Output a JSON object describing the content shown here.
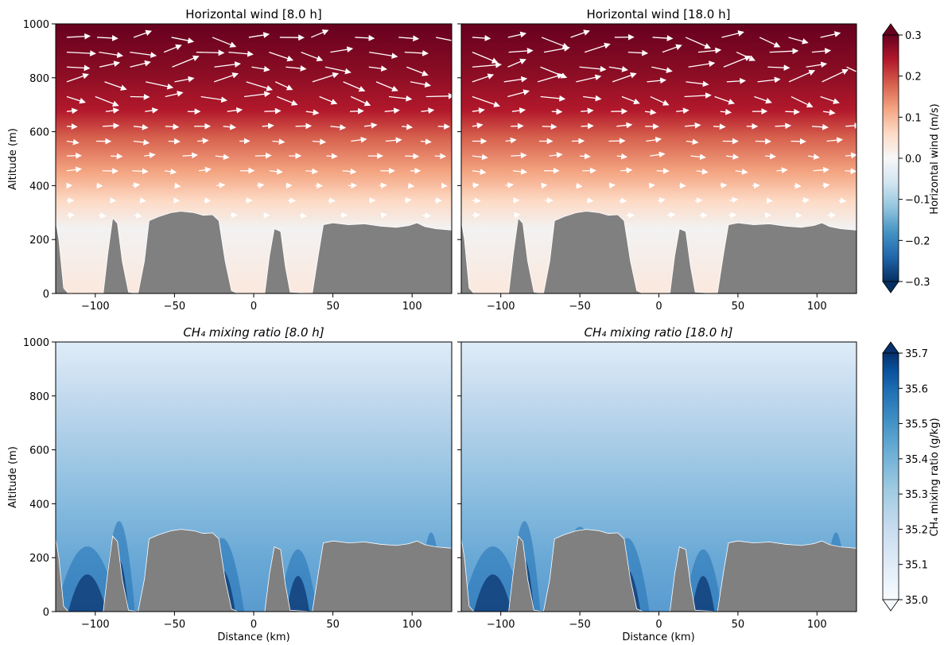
{
  "chart_data": [
    {
      "type": "heatmap",
      "title": "Horizontal wind [8.0 h]",
      "ylabel": "Altitude (m)",
      "xlabel": "",
      "xlim": [
        -125,
        125
      ],
      "ylim": [
        0,
        1000
      ],
      "x_ticks": [
        "−100",
        "−50",
        "0",
        "50",
        "100"
      ],
      "y_ticks": [
        "0",
        "200",
        "400",
        "600",
        "800",
        "1000"
      ],
      "overlay": "wind vectors (white arrows)",
      "terrain": "gray"
    },
    {
      "type": "heatmap",
      "title": "Horizontal wind [18.0 h]",
      "xlim": [
        -125,
        125
      ],
      "ylim": [
        0,
        1000
      ],
      "x_ticks": [
        "−100",
        "−50",
        "0",
        "50",
        "100"
      ],
      "overlay": "wind vectors (white arrows)",
      "terrain": "gray"
    },
    {
      "type": "heatmap",
      "title": "CH₄ mixing ratio [8.0 h]",
      "ylabel": "Altitude (m)",
      "xlabel": "Distance (km)",
      "xlim": [
        -125,
        125
      ],
      "ylim": [
        0,
        1000
      ],
      "x_ticks": [
        "−100",
        "−50",
        "0",
        "50",
        "100"
      ],
      "y_ticks": [
        "0",
        "200",
        "400",
        "600",
        "800",
        "1000"
      ],
      "terrain": "gray"
    },
    {
      "type": "heatmap",
      "title": "CH₄ mixing ratio [18.0 h]",
      "xlabel": "Distance (km)",
      "xlim": [
        -125,
        125
      ],
      "ylim": [
        0,
        1000
      ],
      "x_ticks": [
        "−100",
        "−50",
        "0",
        "50",
        "100"
      ],
      "terrain": "gray"
    }
  ],
  "colorbars": {
    "wind": {
      "label": "Horizontal wind (m/s)",
      "range": [
        -0.3,
        0.3
      ],
      "ticks": [
        "0.3",
        "0.2",
        "0.1",
        "0.0",
        "−0.1",
        "−0.2",
        "−0.3"
      ],
      "colormap": "RdBu_r",
      "colors": [
        "#053061",
        "#2166ac",
        "#4393c3",
        "#92c5de",
        "#d1e5f0",
        "#f7f7f7",
        "#fddbc7",
        "#f4a582",
        "#d6604d",
        "#b2182b",
        "#67001f"
      ]
    },
    "ch4": {
      "label": "CH₄ mixing ratio (g/kg)",
      "range": [
        35.0,
        35.7
      ],
      "ticks": [
        "35.7",
        "35.6",
        "35.5",
        "35.4",
        "35.3",
        "35.2",
        "35.1",
        "35.0"
      ],
      "colormap": "Blues",
      "colors": [
        "#f7fbff",
        "#deebf7",
        "#c6dbef",
        "#9ecae1",
        "#6baed6",
        "#4292c6",
        "#2171b5",
        "#08519c",
        "#08306b"
      ]
    }
  },
  "terrain_color": "#808080"
}
